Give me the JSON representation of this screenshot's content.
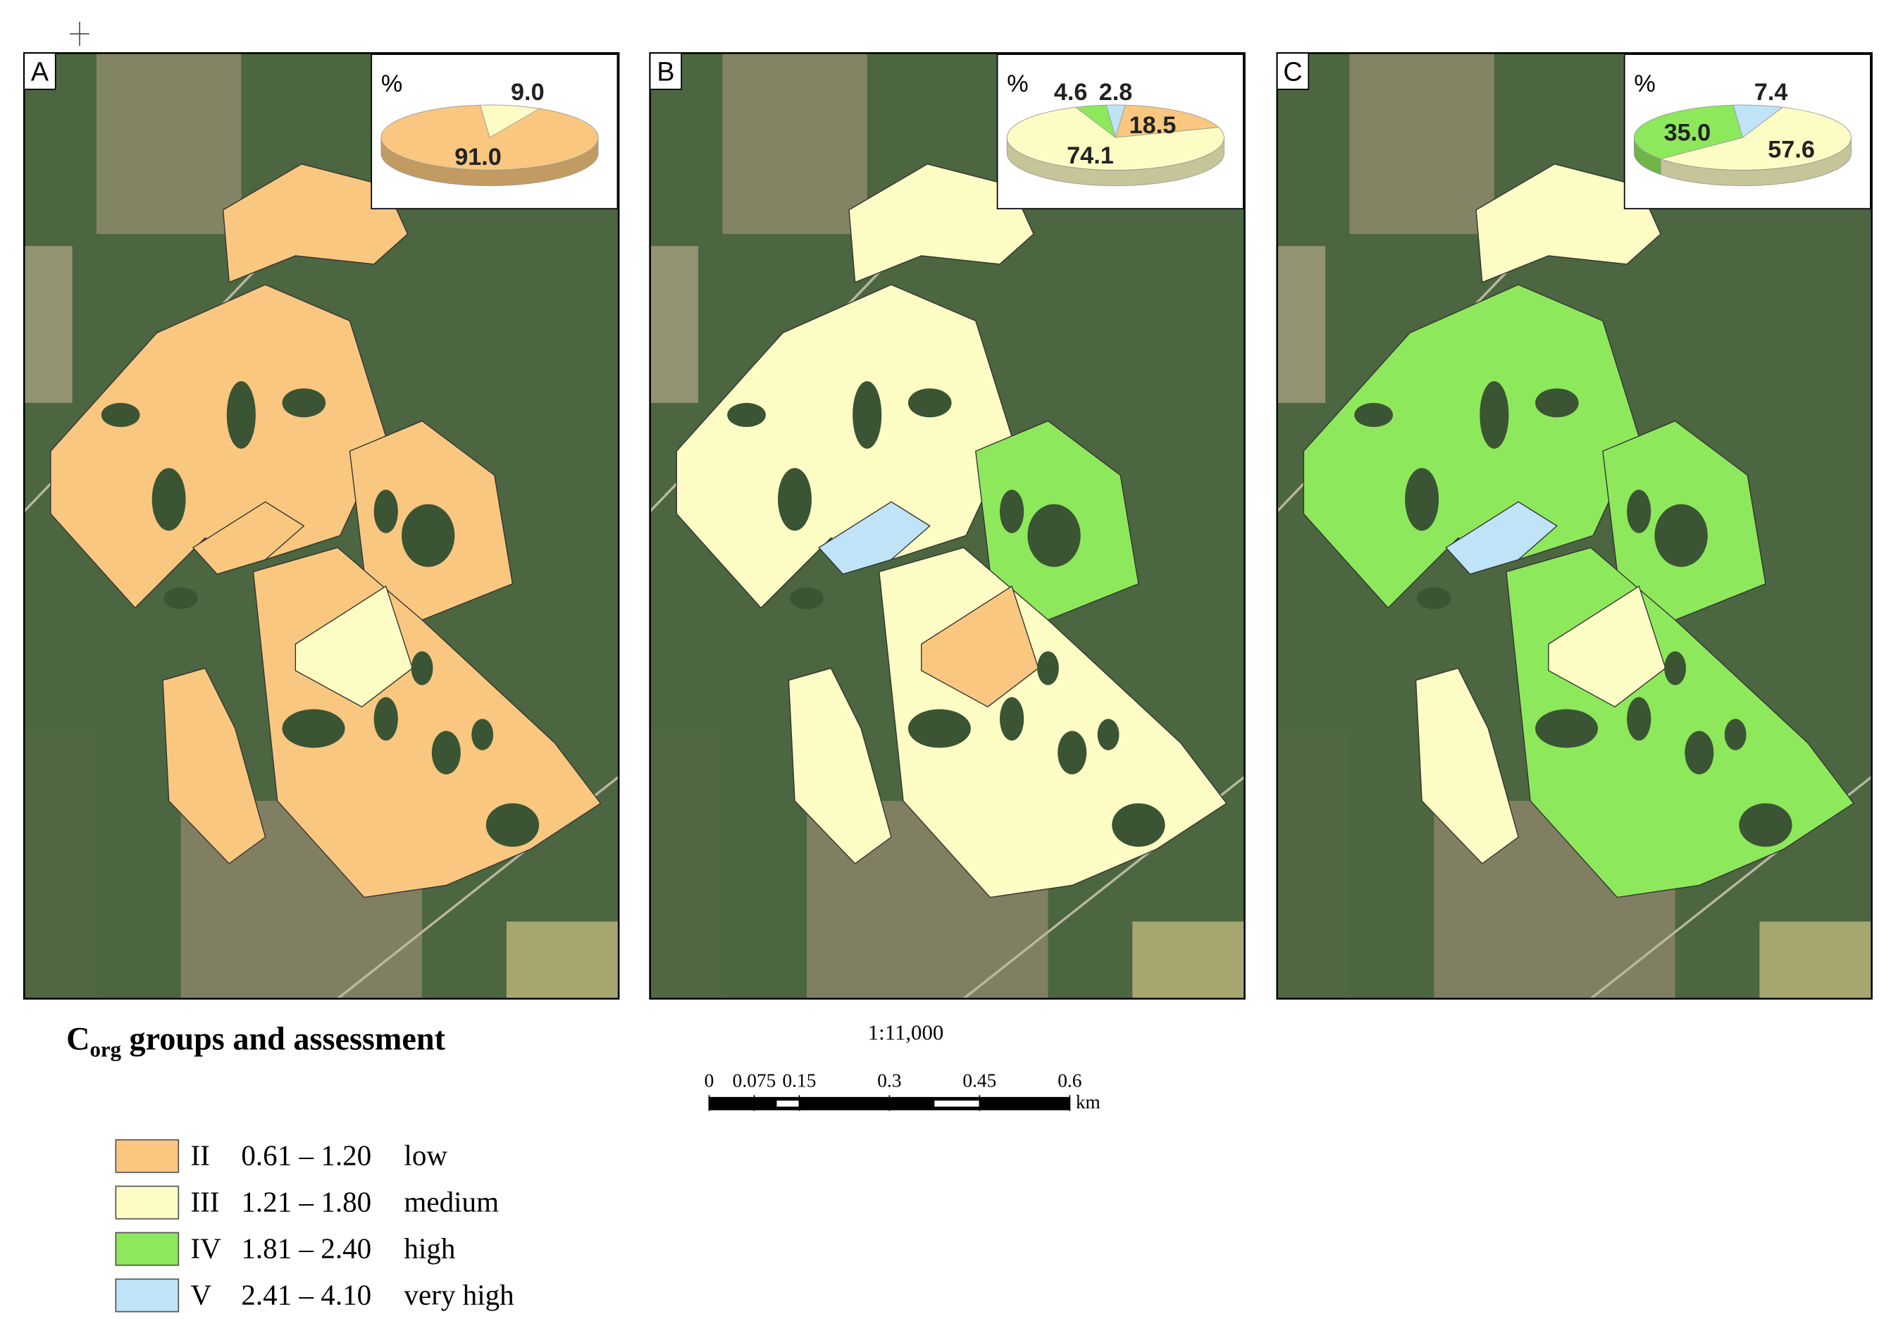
{
  "chart_data": [
    {
      "type": "pie",
      "panel": "A",
      "unit": "%",
      "values": [
        9.0,
        91.0
      ],
      "value_labels": [
        "9.0",
        "91.0"
      ],
      "colors": [
        "#fdfcc4",
        "#f9c77f"
      ]
    },
    {
      "type": "pie",
      "panel": "B",
      "unit": "%",
      "values": [
        2.8,
        18.5,
        74.1,
        4.6
      ],
      "value_labels": [
        "2.8",
        "18.5",
        "74.1",
        "4.6"
      ],
      "colors": [
        "#bfe3f7",
        "#f9c77f",
        "#fdfcc4",
        "#8ee85c"
      ]
    },
    {
      "type": "pie",
      "panel": "C",
      "unit": "%",
      "values": [
        7.4,
        57.6,
        35.0
      ],
      "value_labels": [
        "7.4",
        "57.6",
        "35.0"
      ],
      "colors": [
        "#bfe3f7",
        "#fdfcc4",
        "#8ee85c"
      ]
    }
  ],
  "legend": {
    "title": "C",
    "title_subscript": "org",
    "title_rest": " groups and assessment",
    "items": [
      {
        "group": "II",
        "range": "0.61 – 1.20",
        "assessment": "low",
        "color": "#f9c77f"
      },
      {
        "group": "III",
        "range": "1.21 – 1.80",
        "assessment": "medium",
        "color": "#fdfcc4"
      },
      {
        "group": "IV",
        "range": "1.81 – 2.40",
        "assessment": "high",
        "color": "#8ee85c"
      },
      {
        "group": "V",
        "range": "2.41 – 4.10",
        "assessment": "very high",
        "color": "#bfe3f7"
      }
    ]
  },
  "scale": {
    "ratio": "1:11,000",
    "ticks": [
      0,
      0.075,
      0.15,
      0.3,
      0.45,
      0.6
    ],
    "unit": "km"
  }
}
